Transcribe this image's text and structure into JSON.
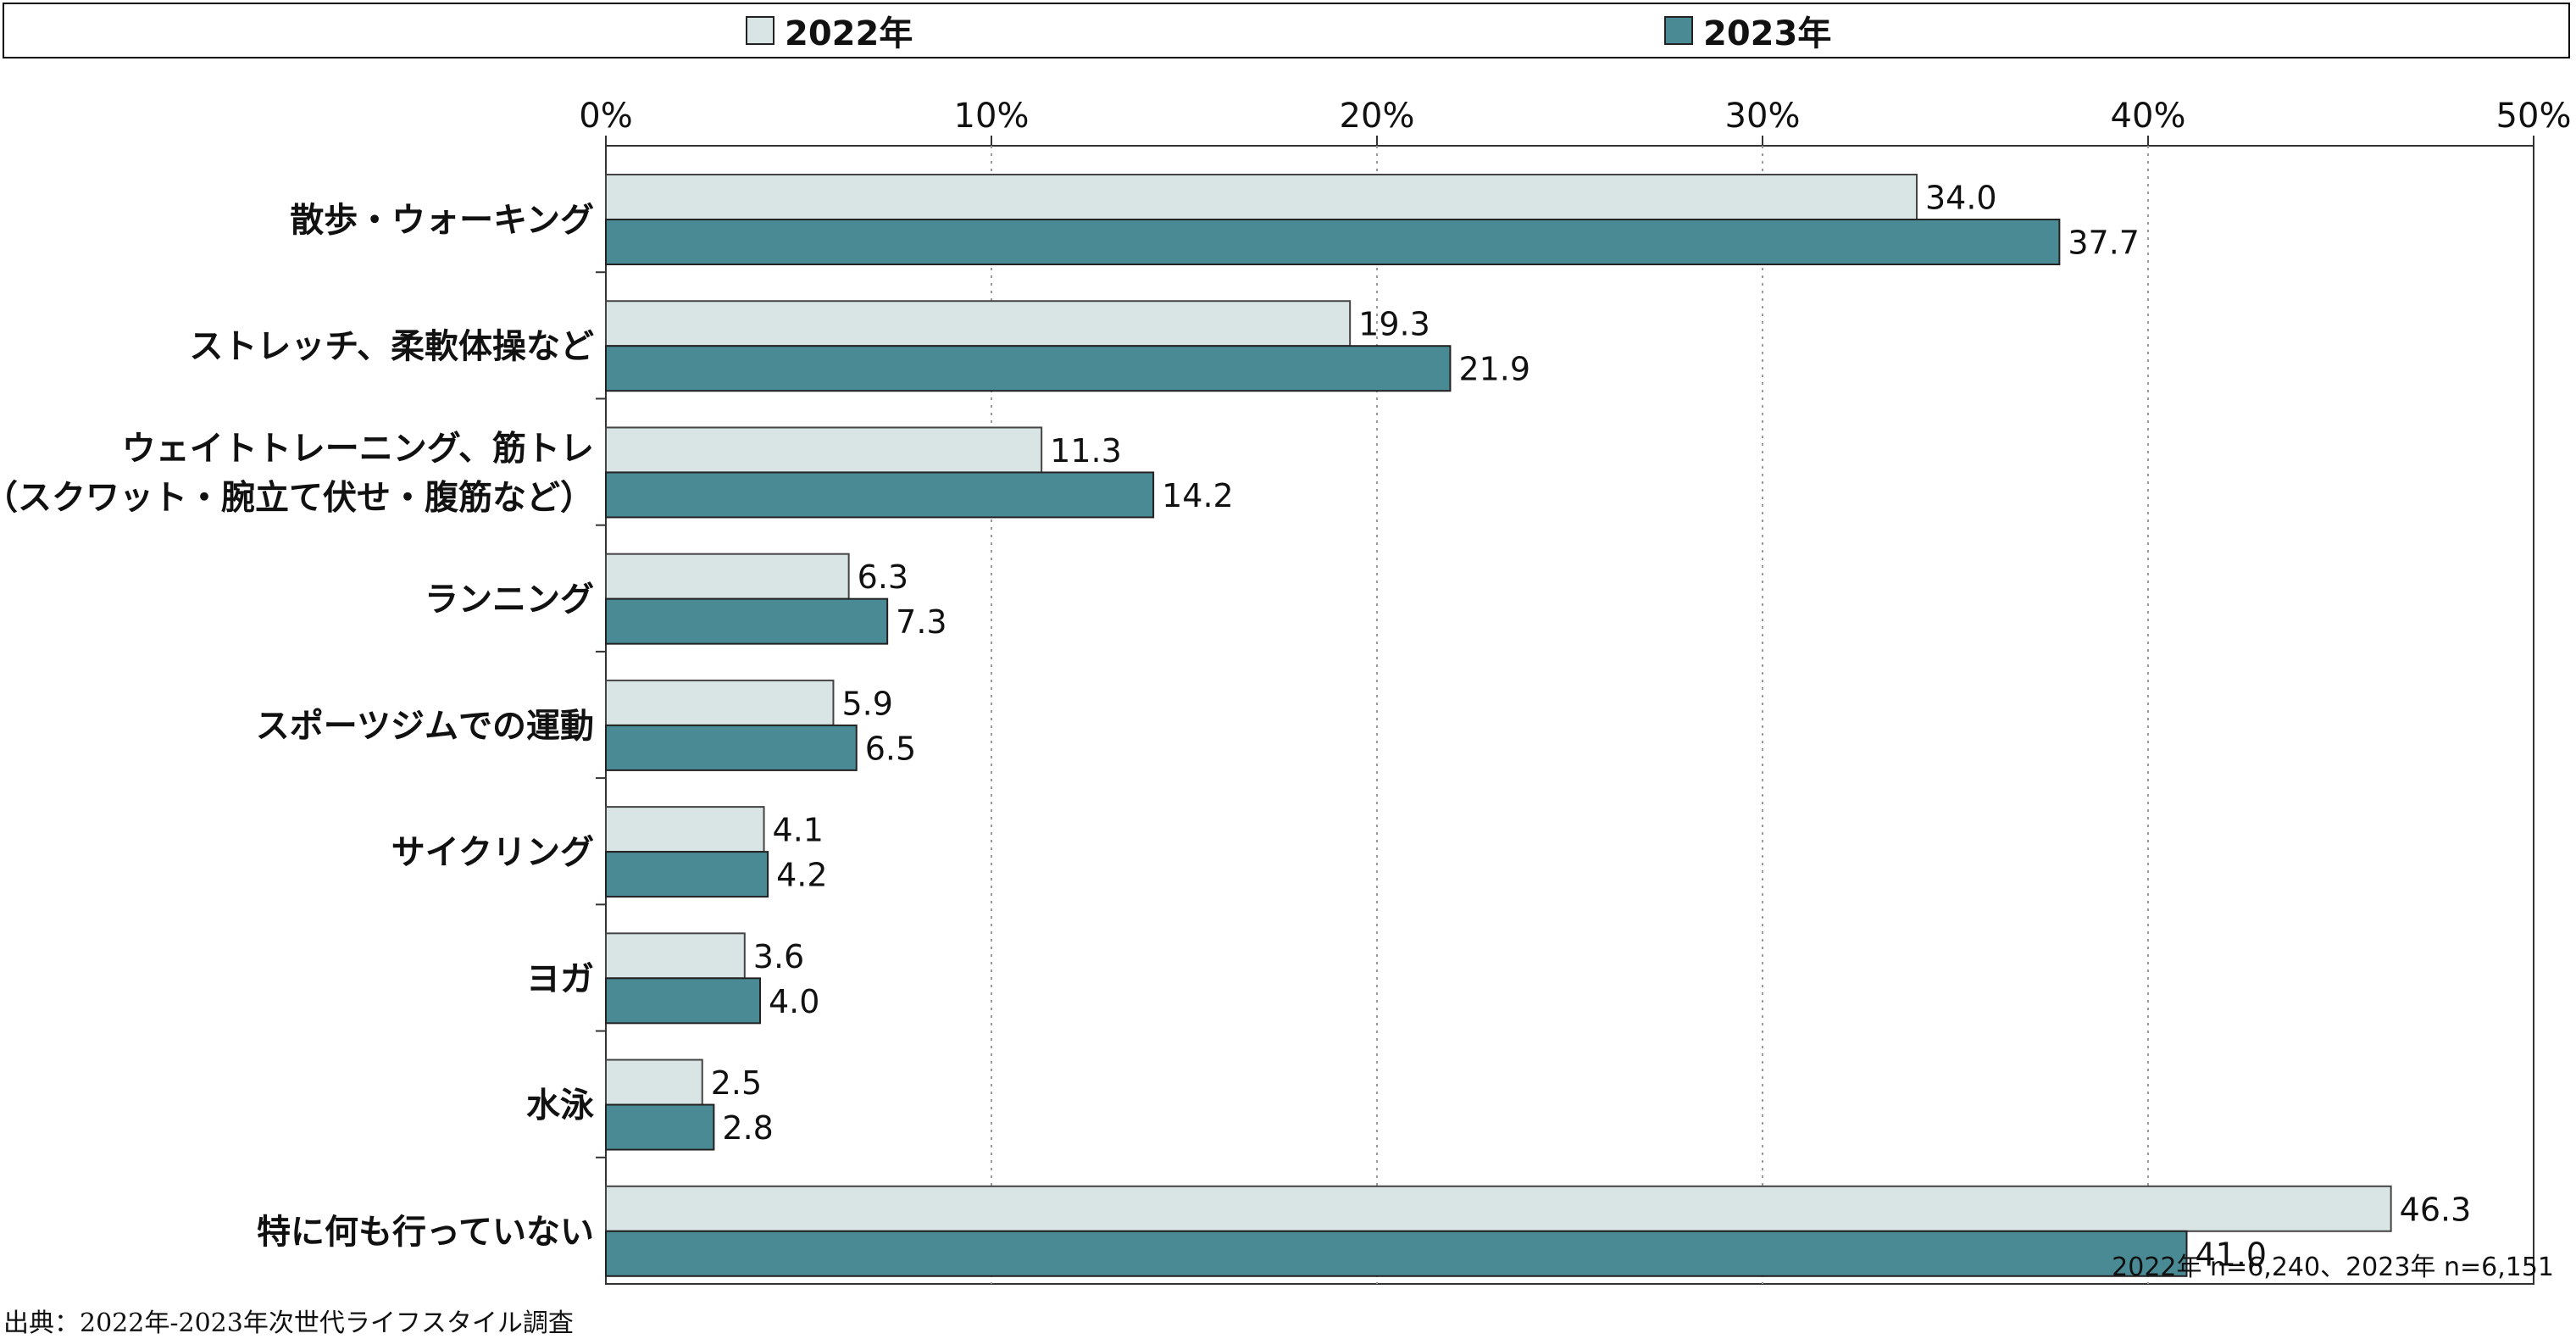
{
  "legend": {
    "items": [
      {
        "label": "2022年",
        "color": "#d9e4e4"
      },
      {
        "label": "2023年",
        "color": "#4a8a94"
      }
    ]
  },
  "note": "2022年 n=6,240、2023年 n=6,151",
  "source": "出典：2022年-2023年次世代ライフスタイル調査",
  "chart_data": {
    "type": "bar",
    "orientation": "horizontal",
    "title": "",
    "xlabel": "",
    "ylabel": "",
    "xlim": [
      0,
      50
    ],
    "x_ticks": [
      "0%",
      "10%",
      "20%",
      "30%",
      "40%",
      "50%"
    ],
    "grid": "vertical dotted",
    "legend_position": "top",
    "categories": [
      [
        "散歩・ウォーキング"
      ],
      [
        "ストレッチ、柔軟体操など"
      ],
      [
        "ウェイトトレーニング、筋トレ",
        "（スクワット・腕立て伏せ・腹筋など）"
      ],
      [
        "ランニング"
      ],
      [
        "スポーツジムでの運動"
      ],
      [
        "サイクリング"
      ],
      [
        "ヨガ"
      ],
      [
        "水泳"
      ],
      [
        "特に何も行っていない"
      ]
    ],
    "series": [
      {
        "name": "2022年",
        "color": "#d9e4e4",
        "values": [
          34.0,
          19.3,
          11.3,
          6.3,
          5.9,
          4.1,
          3.6,
          2.5,
          46.3
        ],
        "labels": [
          "34.0",
          "19.3",
          "11.3",
          "6.3",
          "5.9",
          "4.1",
          "3.6",
          "2.5",
          "46.3"
        ]
      },
      {
        "name": "2023年",
        "color": "#4a8a94",
        "values": [
          37.7,
          21.9,
          14.2,
          7.3,
          6.5,
          4.2,
          4.0,
          2.8,
          41.0
        ],
        "labels": [
          "37.7",
          "21.9",
          "14.2",
          "7.3",
          "6.5",
          "4.2",
          "4.0",
          "2.8",
          "41.0"
        ]
      }
    ]
  }
}
